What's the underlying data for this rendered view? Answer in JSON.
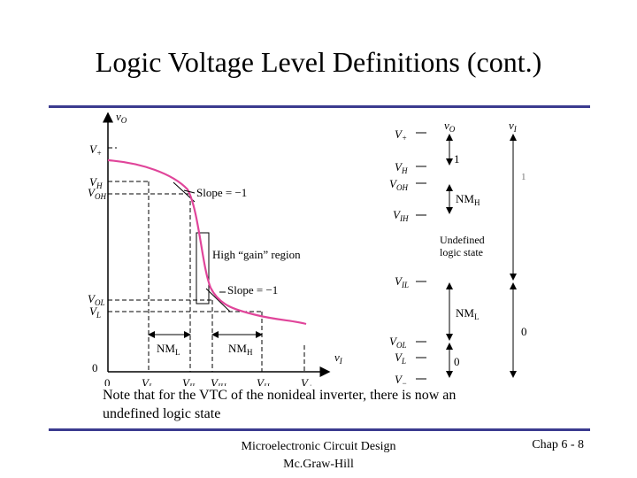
{
  "slide": {
    "title": "Logic Voltage Level Definitions (cont.)",
    "note_line1": "Note that for the VTC of the nonideal inverter, there is now an",
    "note_line2": "undefined logic state",
    "footer_line1": "Microelectronic Circuit Design",
    "footer_line2": "Mc.Graw-Hill",
    "page_label": "Chap 6 - 8"
  },
  "vtc_plot": {
    "y_axis_label": "vO",
    "x_axis_label": "vI",
    "y_ticks": [
      "V+",
      "VH",
      "VOH",
      "VOL",
      "VL",
      "0"
    ],
    "x_ticks": [
      "0",
      "VL",
      "VIL",
      "VIH",
      "VH",
      "V+"
    ],
    "slope_label_top": "Slope = −1",
    "slope_label_bottom": "Slope = −1",
    "gain_label": "High “gain” region",
    "nm_low_label": "NML",
    "nm_high_label": "NMH",
    "curve_color": "#e0459a"
  },
  "level_scale": {
    "left_levels": [
      "V+",
      "VH",
      "VOH",
      "VIH",
      "VIL",
      "VOL",
      "VL",
      "V−"
    ],
    "vo_header": "vO",
    "vi_header": "vI",
    "vo_one": "1",
    "nmh_label": "NMH",
    "undefined_label_line1": "Undefined",
    "undefined_label_line2": "logic state",
    "nml_label": "NML",
    "vo_zero": "0",
    "vi_one": "1",
    "vi_zero": "0"
  }
}
